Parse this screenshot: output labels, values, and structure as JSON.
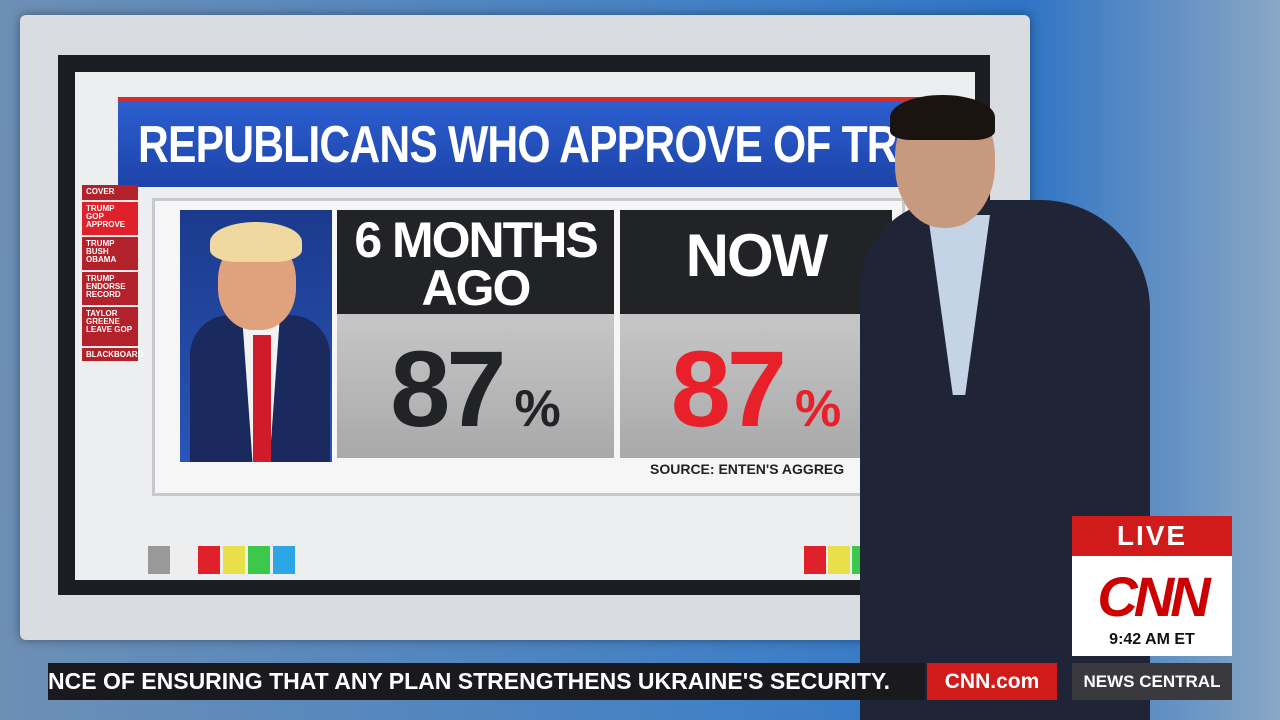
{
  "screen": {
    "title": "REPUBLICANS WHO APPROVE OF TRUM",
    "nav": [
      "COVER",
      "TRUMP GOP APPROVE",
      "TRUMP BUSH OBAMA",
      "TRUMP ENDORSE RECORD",
      "TAYLOR GREENE LEAVE GOP",
      "BLACKBOARD"
    ],
    "columns": [
      {
        "header": "6 MONTHS AGO",
        "value": 87,
        "unit": "%"
      },
      {
        "header": "NOW",
        "value": 87,
        "unit": "%"
      }
    ],
    "source": "SOURCE: ENTEN'S AGGREG"
  },
  "live_bug": {
    "live": "LIVE",
    "logo": "CNN",
    "time": "9:42 AM ET"
  },
  "ticker": {
    "text": "NCE OF ENSURING THAT ANY PLAN STRENGTHENS UKRAINE'S SECURITY.",
    "site": "CNN.com",
    "program": "NEWS CENTRAL"
  }
}
